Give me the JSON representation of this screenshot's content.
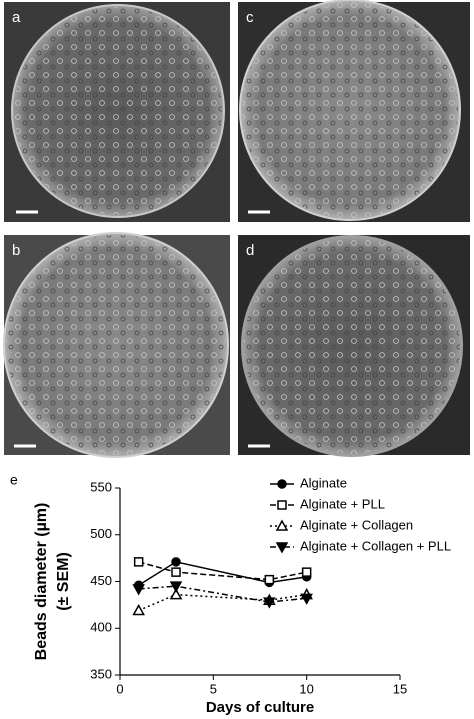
{
  "panels": [
    {
      "label": "a"
    },
    {
      "label": "c"
    },
    {
      "label": "b"
    },
    {
      "label": "d"
    }
  ],
  "chart_data": {
    "type": "line",
    "panel_label": "e",
    "xlabel": "Days of culture",
    "ylabel": [
      "Beads diameter (µm)",
      "(± SEM)"
    ],
    "x": [
      1,
      3,
      8,
      10
    ],
    "xlim": [
      0,
      15
    ],
    "xticks": [
      0,
      5,
      10,
      15
    ],
    "ylim": [
      350,
      550
    ],
    "yticks": [
      350,
      400,
      450,
      500,
      550
    ],
    "legend": "upper right",
    "series": [
      {
        "name": "Alginate",
        "color": "#000000",
        "dash": "solid",
        "marker": "circle",
        "values": [
          446,
          471,
          449,
          455
        ]
      },
      {
        "name": "Alginate + PLL",
        "color": "#000000",
        "dash": "dashed",
        "marker": "open-square",
        "values": [
          471,
          460,
          452,
          460
        ]
      },
      {
        "name": "Alginate + Collagen",
        "color": "#000000",
        "dash": "dotted",
        "marker": "open-triangle",
        "values": [
          419,
          436,
          430,
          436
        ]
      },
      {
        "name": "Alginate + Collagen + PLL",
        "color": "#000000",
        "dash": "dashdot",
        "marker": "down-triangle",
        "values": [
          442,
          445,
          428,
          432
        ]
      }
    ]
  }
}
